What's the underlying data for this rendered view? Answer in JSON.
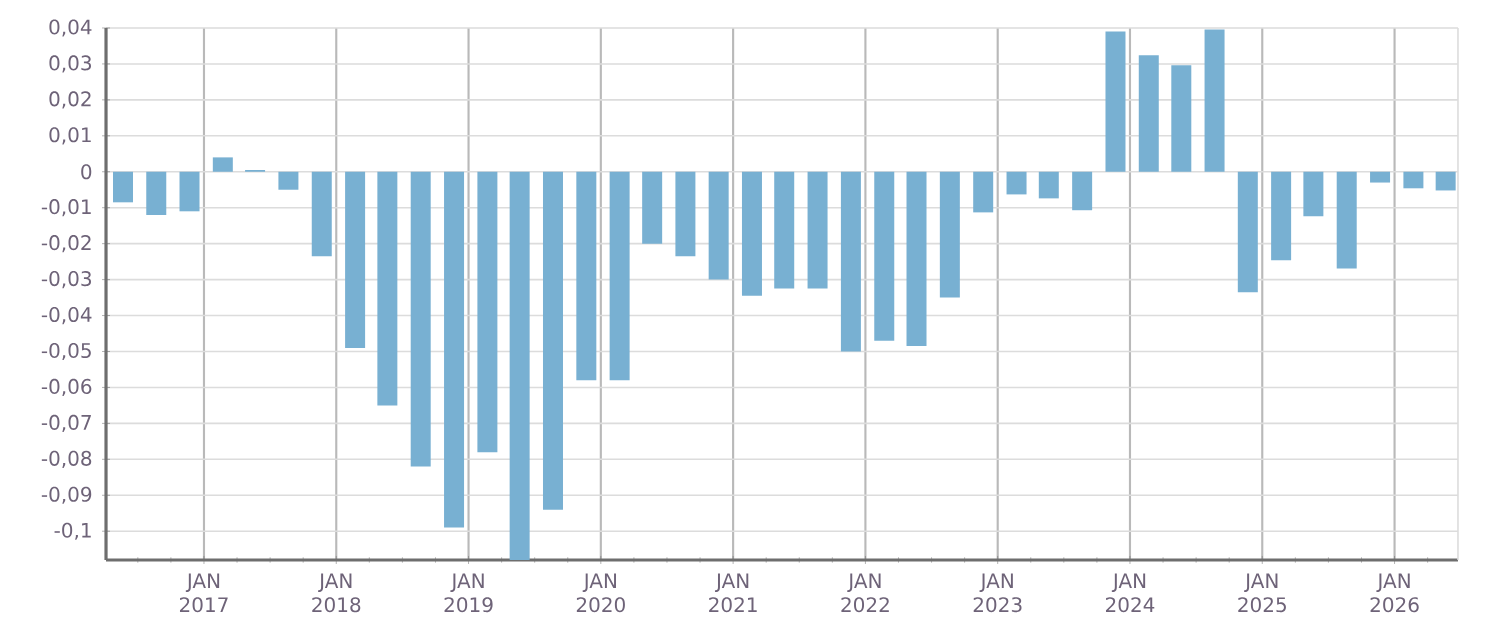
{
  "chart_data": {
    "type": "bar",
    "color": "#78b0d2",
    "x": [
      "2016-05-22",
      "2016-08-22",
      "2016-11-22",
      "2017-02-22",
      "2017-05-22",
      "2017-08-22",
      "2017-11-22",
      "2018-02-22",
      "2018-05-22",
      "2018-08-22",
      "2018-11-22",
      "2019-02-22",
      "2019-05-22",
      "2019-08-22",
      "2019-11-22",
      "2020-02-22",
      "2020-05-22",
      "2020-08-22",
      "2020-11-22",
      "2021-02-22",
      "2021-05-22",
      "2021-08-22",
      "2021-11-22",
      "2022-02-22",
      "2022-05-22",
      "2022-08-22",
      "2022-11-22",
      "2023-02-22",
      "2023-05-22",
      "2023-08-22",
      "2023-11-22",
      "2024-02-22",
      "2024-05-22",
      "2024-08-22",
      "2024-11-22",
      "2025-02-22",
      "2025-05-22",
      "2025-08-22",
      "2025-11-22",
      "2026-02-22",
      "2026-05-22"
    ],
    "values": [
      -0.0085,
      -0.012,
      -0.011,
      0.004,
      0.0005,
      -0.005,
      -0.0235,
      -0.049,
      -0.065,
      -0.082,
      -0.099,
      -0.078,
      -0.108,
      -0.094,
      -0.058,
      -0.058,
      -0.02,
      -0.0235,
      -0.03,
      -0.0345,
      -0.0325,
      -0.0325,
      -0.05,
      -0.047,
      -0.0485,
      -0.035,
      -0.0113,
      -0.0063,
      -0.0074,
      -0.0107,
      0.039,
      0.0324,
      0.0296,
      0.0396,
      -0.0335,
      -0.0246,
      -0.0124,
      -0.0269,
      -0.003,
      -0.0046,
      -0.0052
    ],
    "xlim": [
      "2016-04-05",
      "2026-06-25"
    ],
    "xticks": [
      {
        "value": "2017-01-01",
        "label": "JAN 2017"
      },
      {
        "value": "2018-01-01",
        "label": "JAN 2018"
      },
      {
        "value": "2019-01-01",
        "label": "JAN 2019"
      },
      {
        "value": "2020-01-01",
        "label": "JAN 2020"
      },
      {
        "value": "2021-01-01",
        "label": "JAN 2021"
      },
      {
        "value": "2022-01-01",
        "label": "JAN 2022"
      },
      {
        "value": "2023-01-01",
        "label": "JAN 2023"
      },
      {
        "value": "2024-01-01",
        "label": "JAN 2024"
      },
      {
        "value": "2025-01-01",
        "label": "JAN 2025"
      },
      {
        "value": "2026-01-01",
        "label": "JAN 2026"
      }
    ],
    "ylim": [
      -0.108,
      0.04
    ],
    "yticks": [
      {
        "value": 0.04,
        "label": "0,04"
      },
      {
        "value": 0.03,
        "label": "0,03"
      },
      {
        "value": 0.02,
        "label": "0,02"
      },
      {
        "value": 0.01,
        "label": "0,01"
      },
      0,
      {
        "value": -0.01,
        "label": "-0,01"
      },
      {
        "value": -0.02,
        "label": "-0,02"
      },
      {
        "value": -0.03,
        "label": "-0,03"
      },
      {
        "value": -0.04,
        "label": "-0,04"
      },
      {
        "value": -0.05,
        "label": "-0,05"
      },
      {
        "value": -0.06,
        "label": "-0,06"
      },
      {
        "value": -0.07,
        "label": "-0,07"
      },
      {
        "value": -0.08,
        "label": "-0,08"
      },
      {
        "value": -0.09,
        "label": "-0,09"
      },
      {
        "value": -0.1,
        "label": "-0,1"
      }
    ],
    "grid": true
  }
}
